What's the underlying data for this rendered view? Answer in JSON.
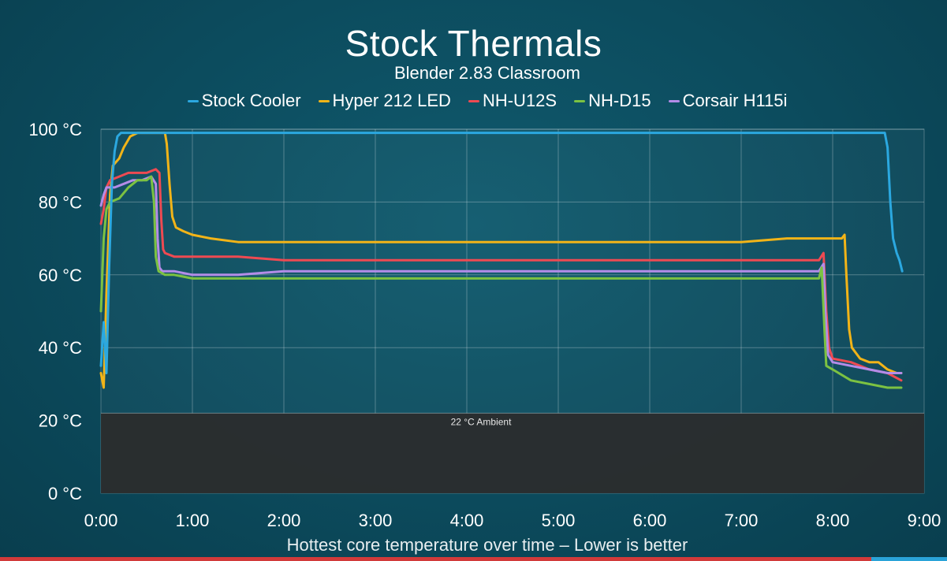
{
  "chart_data": {
    "type": "line",
    "title": "Stock Thermals",
    "subtitle": "Blender 2.83 Classroom",
    "xlabel": "Hottest core temperature over time – Lower is better",
    "ylabel": "",
    "x_unit": "minutes",
    "xlim": [
      0,
      9
    ],
    "ylim": [
      0,
      100
    ],
    "x_ticks": [
      {
        "value": 0,
        "label": "0:00"
      },
      {
        "value": 1,
        "label": "1:00"
      },
      {
        "value": 2,
        "label": "2:00"
      },
      {
        "value": 3,
        "label": "3:00"
      },
      {
        "value": 4,
        "label": "4:00"
      },
      {
        "value": 5,
        "label": "5:00"
      },
      {
        "value": 6,
        "label": "6:00"
      },
      {
        "value": 7,
        "label": "7:00"
      },
      {
        "value": 8,
        "label": "8:00"
      },
      {
        "value": 9,
        "label": "9:00"
      }
    ],
    "y_ticks": [
      {
        "value": 0,
        "label": "0 °C"
      },
      {
        "value": 20,
        "label": "20 °C"
      },
      {
        "value": 40,
        "label": "40 °C"
      },
      {
        "value": 60,
        "label": "60 °C"
      },
      {
        "value": 80,
        "label": "80 °C"
      },
      {
        "value": 100,
        "label": "100 °C"
      }
    ],
    "grid": true,
    "legend_position": "top-center",
    "ambient": {
      "value": 22,
      "label": "22 °C Ambient",
      "color": "#2b2b2b"
    },
    "series": [
      {
        "name": "Stock Cooler",
        "color": "#2ba8e0",
        "points": [
          [
            0.0,
            35
          ],
          [
            0.03,
            47
          ],
          [
            0.06,
            33
          ],
          [
            0.09,
            62
          ],
          [
            0.12,
            85
          ],
          [
            0.15,
            94
          ],
          [
            0.18,
            98
          ],
          [
            0.22,
            99
          ],
          [
            0.5,
            99
          ],
          [
            1.0,
            99
          ],
          [
            2.0,
            99
          ],
          [
            3.0,
            99
          ],
          [
            4.0,
            99
          ],
          [
            5.0,
            99
          ],
          [
            6.0,
            99
          ],
          [
            7.0,
            99
          ],
          [
            8.0,
            99
          ],
          [
            8.5,
            99
          ],
          [
            8.57,
            99
          ],
          [
            8.6,
            95
          ],
          [
            8.63,
            80
          ],
          [
            8.66,
            70
          ],
          [
            8.7,
            66
          ],
          [
            8.73,
            64
          ],
          [
            8.76,
            61
          ]
        ]
      },
      {
        "name": "Hyper 212 LED",
        "color": "#f2b418",
        "points": [
          [
            0.0,
            33
          ],
          [
            0.03,
            29
          ],
          [
            0.06,
            55
          ],
          [
            0.1,
            82
          ],
          [
            0.13,
            90
          ],
          [
            0.2,
            92
          ],
          [
            0.25,
            95
          ],
          [
            0.32,
            98
          ],
          [
            0.4,
            99
          ],
          [
            0.5,
            99
          ],
          [
            0.6,
            99
          ],
          [
            0.7,
            99
          ],
          [
            0.72,
            96
          ],
          [
            0.75,
            85
          ],
          [
            0.78,
            76
          ],
          [
            0.82,
            73
          ],
          [
            0.9,
            72
          ],
          [
            1.0,
            71
          ],
          [
            1.2,
            70
          ],
          [
            1.5,
            69
          ],
          [
            2.0,
            69
          ],
          [
            2.5,
            69
          ],
          [
            3.0,
            69
          ],
          [
            3.5,
            69
          ],
          [
            4.0,
            69
          ],
          [
            4.5,
            69
          ],
          [
            5.0,
            69
          ],
          [
            5.5,
            69
          ],
          [
            6.0,
            69
          ],
          [
            6.5,
            69
          ],
          [
            7.0,
            69
          ],
          [
            7.5,
            70
          ],
          [
            8.0,
            70
          ],
          [
            8.1,
            70
          ],
          [
            8.13,
            71
          ],
          [
            8.15,
            60
          ],
          [
            8.18,
            45
          ],
          [
            8.21,
            40
          ],
          [
            8.3,
            37
          ],
          [
            8.4,
            36
          ],
          [
            8.5,
            36
          ],
          [
            8.6,
            34
          ],
          [
            8.7,
            33
          ],
          [
            8.75,
            33
          ]
        ]
      },
      {
        "name": "NH-U12S",
        "color": "#ee4a52",
        "points": [
          [
            0.0,
            74
          ],
          [
            0.03,
            78
          ],
          [
            0.06,
            84
          ],
          [
            0.1,
            86
          ],
          [
            0.2,
            87
          ],
          [
            0.3,
            88
          ],
          [
            0.4,
            88
          ],
          [
            0.5,
            88
          ],
          [
            0.6,
            89
          ],
          [
            0.64,
            88
          ],
          [
            0.66,
            75
          ],
          [
            0.68,
            67
          ],
          [
            0.7,
            66
          ],
          [
            0.8,
            65
          ],
          [
            1.0,
            65
          ],
          [
            1.5,
            65
          ],
          [
            2.0,
            64
          ],
          [
            2.5,
            64
          ],
          [
            3.0,
            64
          ],
          [
            3.5,
            64
          ],
          [
            4.0,
            64
          ],
          [
            4.5,
            64
          ],
          [
            5.0,
            64
          ],
          [
            5.5,
            64
          ],
          [
            6.0,
            64
          ],
          [
            6.5,
            64
          ],
          [
            7.0,
            64
          ],
          [
            7.5,
            64
          ],
          [
            7.85,
            64
          ],
          [
            7.9,
            66
          ],
          [
            7.93,
            50
          ],
          [
            7.96,
            40
          ],
          [
            8.0,
            37
          ],
          [
            8.2,
            36
          ],
          [
            8.4,
            34
          ],
          [
            8.6,
            33
          ],
          [
            8.75,
            31
          ]
        ]
      },
      {
        "name": "NH-D15",
        "color": "#7cc242",
        "points": [
          [
            0.0,
            50
          ],
          [
            0.03,
            70
          ],
          [
            0.06,
            78
          ],
          [
            0.1,
            80
          ],
          [
            0.2,
            81
          ],
          [
            0.3,
            84
          ],
          [
            0.4,
            86
          ],
          [
            0.5,
            86
          ],
          [
            0.55,
            87
          ],
          [
            0.58,
            80
          ],
          [
            0.6,
            65
          ],
          [
            0.63,
            61
          ],
          [
            0.7,
            60
          ],
          [
            0.8,
            60
          ],
          [
            1.0,
            59
          ],
          [
            1.5,
            59
          ],
          [
            2.0,
            59
          ],
          [
            2.5,
            59
          ],
          [
            3.0,
            59
          ],
          [
            3.5,
            59
          ],
          [
            4.0,
            59
          ],
          [
            4.5,
            59
          ],
          [
            5.0,
            59
          ],
          [
            5.5,
            59
          ],
          [
            6.0,
            59
          ],
          [
            6.5,
            59
          ],
          [
            7.0,
            59
          ],
          [
            7.5,
            59
          ],
          [
            7.85,
            59
          ],
          [
            7.88,
            62
          ],
          [
            7.91,
            45
          ],
          [
            7.93,
            35
          ],
          [
            8.0,
            34
          ],
          [
            8.2,
            31
          ],
          [
            8.4,
            30
          ],
          [
            8.6,
            29
          ],
          [
            8.75,
            29
          ]
        ]
      },
      {
        "name": "Corsair H115i",
        "color": "#b48ce8",
        "points": [
          [
            0.0,
            79
          ],
          [
            0.03,
            82
          ],
          [
            0.06,
            84
          ],
          [
            0.15,
            84
          ],
          [
            0.25,
            85
          ],
          [
            0.35,
            86
          ],
          [
            0.45,
            86
          ],
          [
            0.55,
            87
          ],
          [
            0.6,
            85
          ],
          [
            0.62,
            70
          ],
          [
            0.64,
            62
          ],
          [
            0.67,
            61
          ],
          [
            0.8,
            61
          ],
          [
            1.0,
            60
          ],
          [
            1.5,
            60
          ],
          [
            2.0,
            61
          ],
          [
            2.5,
            61
          ],
          [
            3.0,
            61
          ],
          [
            3.5,
            61
          ],
          [
            4.0,
            61
          ],
          [
            4.5,
            61
          ],
          [
            5.0,
            61
          ],
          [
            5.5,
            61
          ],
          [
            6.0,
            61
          ],
          [
            6.5,
            61
          ],
          [
            7.0,
            61
          ],
          [
            7.5,
            61
          ],
          [
            7.85,
            61
          ],
          [
            7.9,
            63
          ],
          [
            7.92,
            50
          ],
          [
            7.95,
            38
          ],
          [
            8.0,
            36
          ],
          [
            8.2,
            35
          ],
          [
            8.4,
            34
          ],
          [
            8.6,
            33
          ],
          [
            8.75,
            33
          ]
        ]
      }
    ]
  }
}
